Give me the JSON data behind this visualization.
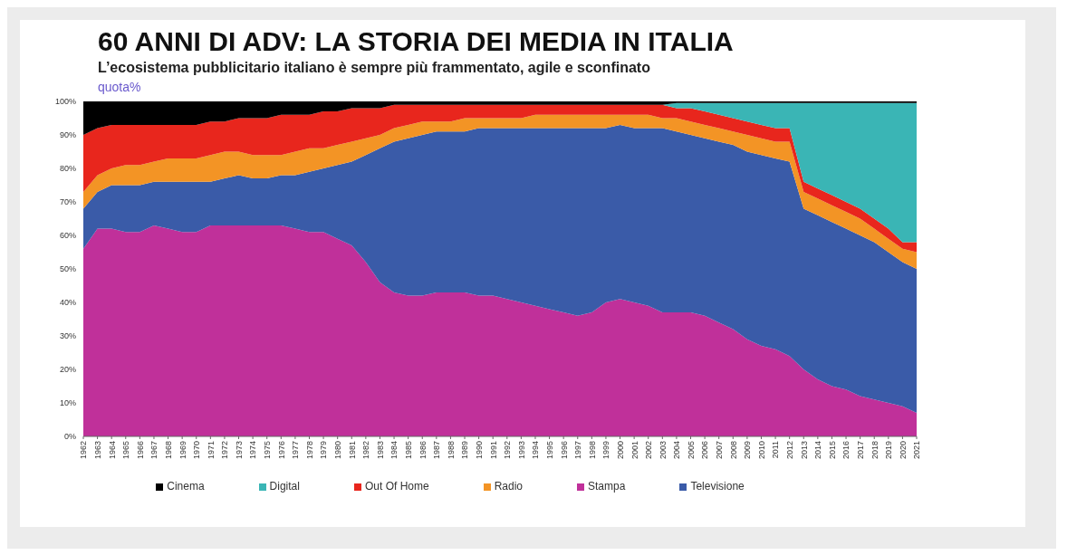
{
  "chart_data": {
    "type": "area",
    "stacked": true,
    "title": "60 ANNI DI ADV: LA STORIA DEI MEDIA IN ITALIA",
    "subtitle": "L’ecosistema pubblicitario italiano è sempre più frammentato, agile e sconfinato",
    "ylabel": "quota%",
    "legend": "bottom",
    "categories": [
      "1962",
      "1963",
      "1964",
      "1965",
      "1966",
      "1967",
      "1968",
      "1969",
      "1970",
      "1971",
      "1972",
      "1973",
      "1974",
      "1975",
      "1976",
      "1977",
      "1978",
      "1979",
      "1980",
      "1981",
      "1982",
      "1983",
      "1984",
      "1985",
      "1986",
      "1987",
      "1988",
      "1989",
      "1990",
      "1991",
      "1992",
      "1993",
      "1994",
      "1995",
      "1996",
      "1997",
      "1998",
      "1999",
      "2000",
      "2001",
      "2002",
      "2003",
      "2004",
      "2005",
      "2006",
      "2007",
      "2008",
      "2009",
      "2010",
      "2011",
      "2012",
      "2013",
      "2014",
      "2015",
      "2016",
      "2017",
      "2018",
      "2019",
      "2020",
      "2021"
    ],
    "ylim": [
      0,
      100
    ],
    "yticks": [
      {
        "value": 0,
        "label": "0%"
      },
      {
        "value": 10,
        "label": "10%"
      },
      {
        "value": 20,
        "label": "20%"
      },
      {
        "value": 30,
        "label": "30%"
      },
      {
        "value": 40,
        "label": "40%"
      },
      {
        "value": 50,
        "label": "50%"
      },
      {
        "value": 60,
        "label": "60%"
      },
      {
        "value": 70,
        "label": "70%"
      },
      {
        "value": 80,
        "label": "80%"
      },
      {
        "value": 90,
        "label": "90%"
      },
      {
        "value": 100,
        "label": "100%"
      }
    ],
    "series": [
      {
        "name": "Stampa",
        "color": "#c0309a",
        "values": [
          56,
          62,
          62,
          61,
          61,
          63,
          62,
          61,
          61,
          63,
          63,
          63,
          63,
          63,
          63,
          62,
          61,
          61,
          59,
          57,
          52,
          46,
          43,
          42,
          42,
          43,
          43,
          43,
          42,
          42,
          41,
          40,
          39,
          38,
          37,
          36,
          37,
          40,
          41,
          40,
          39,
          37,
          37,
          37,
          36,
          34,
          32,
          29,
          27,
          26,
          24,
          20,
          17,
          15,
          14,
          12,
          11,
          10,
          9,
          7
        ]
      },
      {
        "name": "Televisione",
        "color": "#3a5ba8",
        "values": [
          12,
          11,
          13,
          14,
          14,
          13,
          14,
          15,
          15,
          13,
          14,
          15,
          14,
          14,
          15,
          16,
          18,
          19,
          22,
          25,
          32,
          40,
          45,
          47,
          48,
          48,
          48,
          48,
          50,
          50,
          51,
          52,
          53,
          54,
          55,
          56,
          55,
          52,
          52,
          52,
          53,
          55,
          54,
          53,
          53,
          54,
          55,
          56,
          57,
          57,
          58,
          48,
          49,
          49,
          48,
          48,
          47,
          45,
          43,
          43
        ]
      },
      {
        "name": "Radio",
        "color": "#f39425",
        "values": [
          5,
          5,
          5,
          6,
          6,
          6,
          7,
          7,
          7,
          8,
          8,
          7,
          7,
          7,
          6,
          7,
          7,
          6,
          6,
          6,
          5,
          4,
          4,
          4,
          4,
          3,
          3,
          4,
          3,
          3,
          3,
          3,
          4,
          4,
          4,
          4,
          4,
          4,
          3,
          4,
          4,
          3,
          4,
          4,
          4,
          4,
          4,
          5,
          5,
          5,
          6,
          5,
          5,
          5,
          5,
          5,
          4,
          4,
          4,
          5
        ]
      },
      {
        "name": "Out Of Home",
        "color": "#e8261d",
        "values": [
          17,
          14,
          13,
          12,
          12,
          11,
          10,
          10,
          10,
          10,
          9,
          10,
          11,
          11,
          12,
          11,
          10,
          11,
          10,
          10,
          9,
          8,
          7,
          6,
          5,
          5,
          5,
          4,
          4,
          4,
          4,
          4,
          3,
          3,
          3,
          3,
          3,
          3,
          3,
          3,
          3,
          4,
          3,
          4,
          4,
          4,
          4,
          4,
          4,
          4,
          4,
          3,
          3,
          3,
          3,
          3,
          3,
          3,
          2,
          3
        ]
      },
      {
        "name": "Digital",
        "color": "#3ab5b5",
        "values": [
          0,
          0,
          0,
          0,
          0,
          0,
          0,
          0,
          0,
          0,
          0,
          0,
          0,
          0,
          0,
          0,
          0,
          0,
          0,
          0,
          0,
          0,
          0,
          0,
          0,
          0,
          0,
          0,
          0,
          0,
          0,
          0,
          0,
          0,
          0,
          0,
          0,
          0,
          0,
          0,
          0,
          0,
          1.5,
          1.5,
          2.5,
          3.5,
          4.5,
          5.5,
          6.5,
          7.5,
          7.5,
          23.5,
          25.5,
          27.5,
          29.5,
          31.5,
          34.5,
          37.5,
          41.5,
          41.5
        ]
      },
      {
        "name": "Cinema",
        "color": "#000000",
        "values": [
          10,
          8,
          7,
          7,
          7,
          7,
          7,
          7,
          7,
          6,
          6,
          5,
          5,
          5,
          4,
          4,
          4,
          3,
          3,
          2,
          2,
          2,
          1,
          1,
          1,
          1,
          1,
          1,
          1,
          1,
          1,
          1,
          1,
          1,
          1,
          1,
          1,
          1,
          1,
          1,
          1,
          1,
          0.5,
          0.5,
          0.5,
          0.5,
          0.5,
          0.5,
          0.5,
          0.5,
          0.5,
          0.5,
          0.5,
          0.5,
          0.5,
          0.5,
          0.5,
          0.5,
          0.5,
          0.5
        ]
      }
    ]
  }
}
